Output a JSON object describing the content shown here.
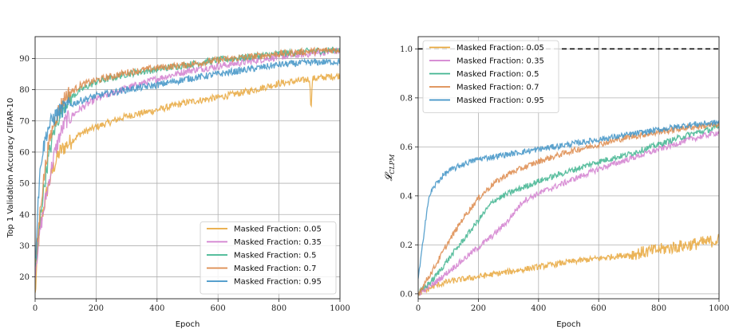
{
  "chart_data": [
    {
      "type": "line",
      "xlabel": "Epoch",
      "ylabel": "Top 1 Validation Accuracy CIFAR-10",
      "xlim": [
        0,
        1000
      ],
      "ylim": [
        13,
        97
      ],
      "xticks": [
        0,
        200,
        400,
        600,
        800,
        1000
      ],
      "yticks": [
        20,
        30,
        40,
        50,
        60,
        70,
        80,
        90
      ],
      "grid": true,
      "legend": "bottom-right",
      "series": [
        {
          "name": "Masked Fraction: 0.05",
          "color": "#e8a73c",
          "x": [
            0,
            10,
            20,
            40,
            60,
            80,
            100,
            150,
            200,
            300,
            400,
            500,
            600,
            700,
            800,
            880,
            900,
            905,
            910,
            950,
            1000
          ],
          "y": [
            14,
            30,
            38,
            48,
            55,
            60,
            62,
            66,
            68,
            71.5,
            73.5,
            76,
            77.5,
            79.5,
            82,
            83,
            83.5,
            74,
            83.5,
            84,
            84.5
          ]
        },
        {
          "name": "Masked Fraction: 0.35",
          "color": "#d27fcf",
          "x": [
            0,
            10,
            20,
            40,
            60,
            80,
            100,
            150,
            200,
            300,
            400,
            500,
            600,
            700,
            800,
            900,
            1000
          ],
          "y": [
            22,
            30,
            37,
            48,
            58,
            65,
            70,
            74,
            77,
            80.5,
            83.5,
            86,
            87.5,
            89,
            90.5,
            91.5,
            92.5
          ]
        },
        {
          "name": "Masked Fraction: 0.5",
          "color": "#3fb48f",
          "x": [
            0,
            10,
            20,
            40,
            60,
            80,
            100,
            150,
            200,
            300,
            400,
            500,
            600,
            700,
            800,
            900,
            1000
          ],
          "y": [
            23,
            32,
            42,
            56,
            66,
            72,
            76,
            80,
            82.5,
            85,
            86.5,
            88,
            89.5,
            90.5,
            91.5,
            92.3,
            92.8
          ]
        },
        {
          "name": "Masked Fraction: 0.7",
          "color": "#dd8a4b",
          "x": [
            0,
            10,
            20,
            40,
            60,
            80,
            100,
            150,
            200,
            300,
            400,
            500,
            600,
            700,
            800,
            900,
            1000
          ],
          "y": [
            24,
            34,
            45,
            60,
            69,
            74,
            78,
            81.5,
            83,
            85.5,
            87,
            88,
            89.5,
            90.5,
            91.5,
            92.3,
            92.8
          ]
        },
        {
          "name": "Masked Fraction: 0.95",
          "color": "#3f93c6",
          "x": [
            0,
            10,
            20,
            40,
            60,
            80,
            100,
            150,
            200,
            300,
            400,
            500,
            600,
            700,
            800,
            900,
            1000
          ],
          "y": [
            24,
            45,
            58,
            67,
            71,
            73,
            74.5,
            76.5,
            78,
            80,
            81.5,
            83.5,
            85,
            86.5,
            88,
            88.7,
            89
          ]
        }
      ]
    },
    {
      "type": "line",
      "xlabel": "Epoch",
      "ylabel": "𝓛",
      "ylabel_sub": "CLPM",
      "xlim": [
        0,
        1000
      ],
      "ylim": [
        -0.02,
        1.05
      ],
      "xticks": [
        0,
        200,
        400,
        600,
        800,
        1000
      ],
      "yticks": [
        0.0,
        0.2,
        0.4,
        0.6,
        0.8,
        1.0
      ],
      "ytick_labels": [
        "0.0",
        "0.2",
        "0.4",
        "0.6",
        "0.8",
        "1.0"
      ],
      "grid": true,
      "legend": "top-left",
      "reference_line": {
        "y": 1.0,
        "style": "dashed",
        "color": "#000000"
      },
      "series": [
        {
          "name": "Masked Fraction: 0.05",
          "color": "#e8a73c",
          "x": [
            0,
            50,
            100,
            200,
            300,
            400,
            500,
            600,
            700,
            800,
            900,
            950,
            1000
          ],
          "y": [
            0.0,
            0.03,
            0.05,
            0.07,
            0.09,
            0.11,
            0.13,
            0.145,
            0.16,
            0.18,
            0.2,
            0.21,
            0.22
          ]
        },
        {
          "name": "Masked Fraction: 0.35",
          "color": "#d27fcf",
          "x": [
            0,
            50,
            100,
            150,
            200,
            250,
            300,
            330,
            350,
            400,
            500,
            600,
            700,
            800,
            900,
            1000
          ],
          "y": [
            0.0,
            0.04,
            0.09,
            0.14,
            0.19,
            0.24,
            0.3,
            0.35,
            0.38,
            0.41,
            0.46,
            0.51,
            0.55,
            0.59,
            0.63,
            0.66
          ]
        },
        {
          "name": "Masked Fraction: 0.5",
          "color": "#3fb48f",
          "x": [
            0,
            50,
            100,
            150,
            200,
            250,
            300,
            400,
            500,
            600,
            700,
            800,
            900,
            1000
          ],
          "y": [
            0.0,
            0.06,
            0.14,
            0.22,
            0.3,
            0.38,
            0.41,
            0.46,
            0.5,
            0.54,
            0.57,
            0.61,
            0.65,
            0.68
          ]
        },
        {
          "name": "Masked Fraction: 0.7",
          "color": "#dd8a4b",
          "x": [
            0,
            50,
            100,
            150,
            200,
            250,
            300,
            400,
            500,
            600,
            700,
            800,
            900,
            1000
          ],
          "y": [
            0.0,
            0.1,
            0.21,
            0.31,
            0.39,
            0.45,
            0.49,
            0.54,
            0.58,
            0.61,
            0.64,
            0.66,
            0.68,
            0.69
          ]
        },
        {
          "name": "Masked Fraction: 0.95",
          "color": "#3f93c6",
          "x": [
            0,
            10,
            20,
            30,
            40,
            60,
            80,
            100,
            150,
            200,
            300,
            400,
            500,
            600,
            700,
            800,
            900,
            1000
          ],
          "y": [
            0.06,
            0.15,
            0.26,
            0.35,
            0.41,
            0.45,
            0.48,
            0.5,
            0.53,
            0.55,
            0.57,
            0.59,
            0.61,
            0.63,
            0.65,
            0.67,
            0.69,
            0.7
          ]
        }
      ]
    }
  ]
}
